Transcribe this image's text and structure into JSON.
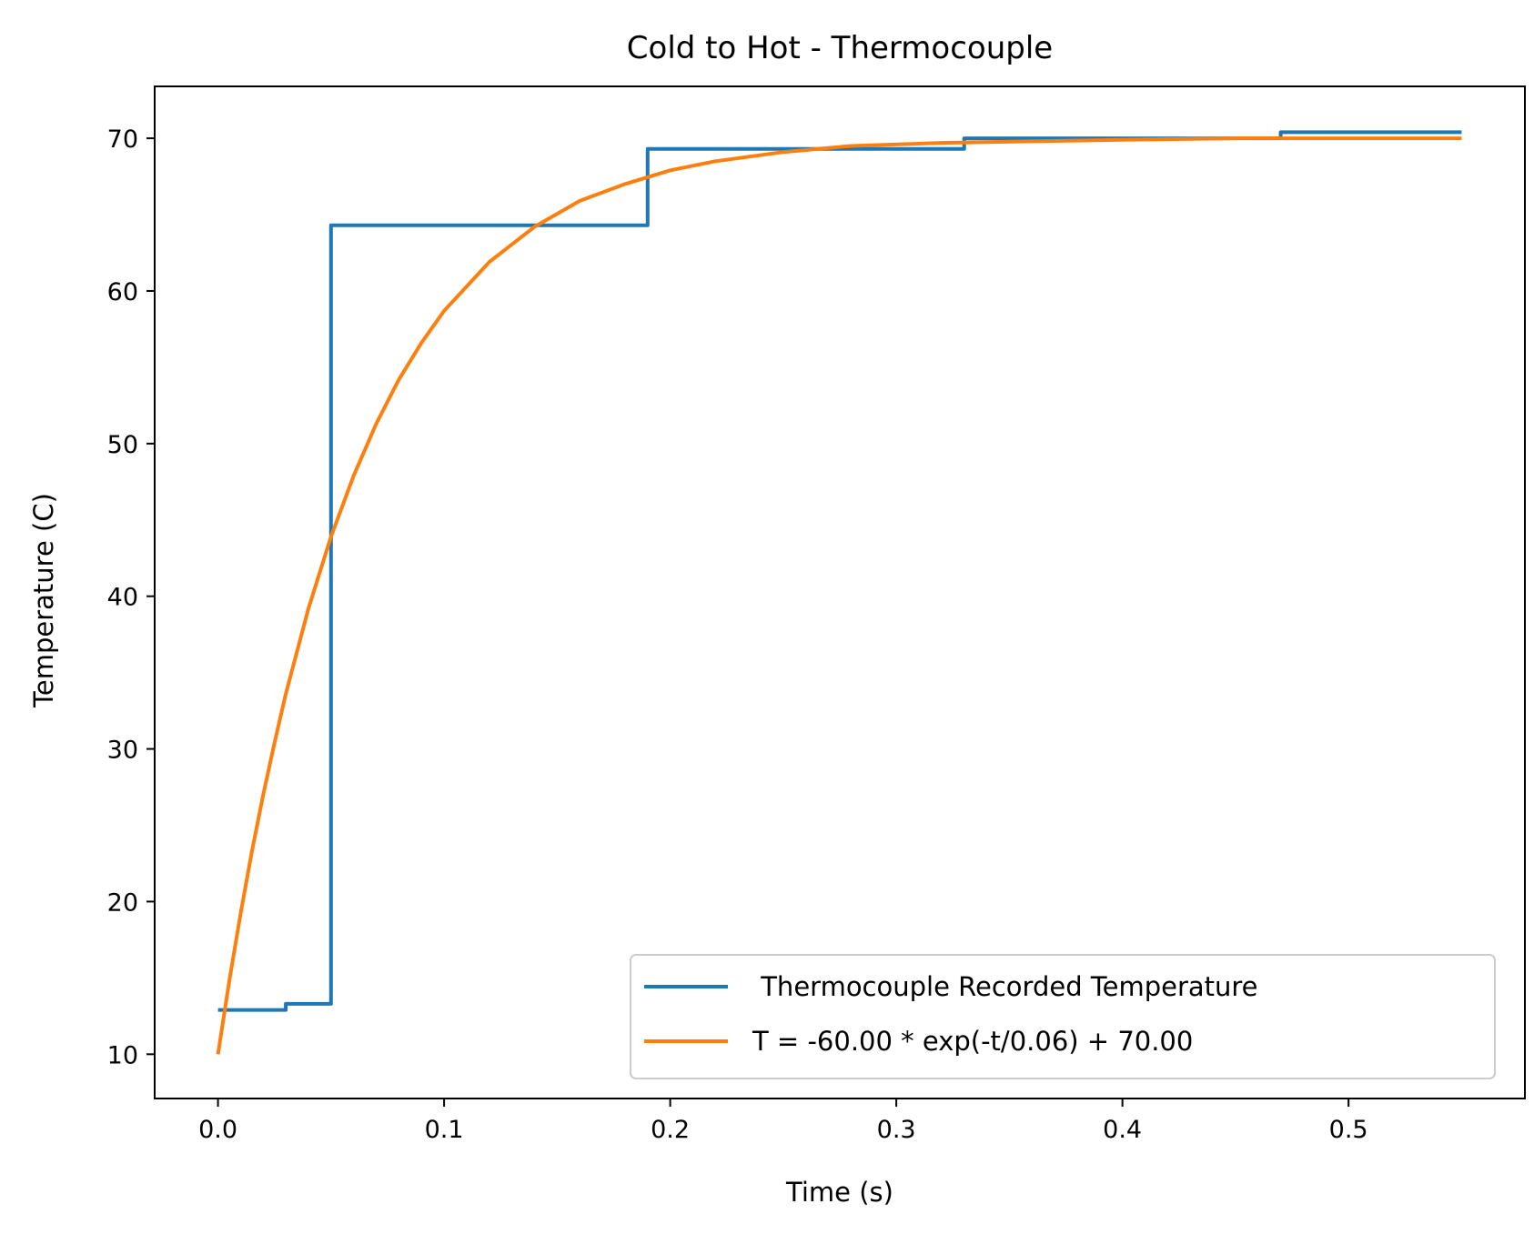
{
  "chart_data": {
    "type": "line",
    "title": "Cold to Hot - Thermocouple",
    "xlabel": "Time (s)",
    "ylabel": "Temperature (C)",
    "xlim": [
      -0.028,
      0.578
    ],
    "ylim": [
      7.1,
      73.4
    ],
    "x_ticks": [
      0.0,
      0.1,
      0.2,
      0.3,
      0.4,
      0.5
    ],
    "x_tick_labels": [
      "0.0",
      "0.1",
      "0.2",
      "0.3",
      "0.4",
      "0.5"
    ],
    "y_ticks": [
      10,
      20,
      30,
      40,
      50,
      60,
      70
    ],
    "y_tick_labels": [
      "10",
      "20",
      "30",
      "40",
      "50",
      "60",
      "70"
    ],
    "grid": false,
    "legend_position": "lower-right",
    "series": [
      {
        "name": " Thermocouple Recorded Temperature",
        "color": "#1f77b4",
        "style": "step",
        "x": [
          0.0,
          0.03,
          0.03,
          0.05,
          0.05,
          0.19,
          0.19,
          0.33,
          0.33,
          0.47,
          0.47,
          0.55
        ],
        "y": [
          12.9,
          12.9,
          13.3,
          13.3,
          64.3,
          64.3,
          69.3,
          69.3,
          70.0,
          70.0,
          70.4,
          70.4
        ]
      },
      {
        "name": "T = -60.00 * exp(-t/0.06) + 70.00",
        "color": "#ff7f0e",
        "style": "line",
        "x": [
          0.0,
          0.005,
          0.01,
          0.015,
          0.02,
          0.025,
          0.03,
          0.04,
          0.05,
          0.06,
          0.07,
          0.08,
          0.09,
          0.1,
          0.12,
          0.14,
          0.16,
          0.18,
          0.2,
          0.22,
          0.25,
          0.28,
          0.32,
          0.36,
          0.4,
          0.45,
          0.5,
          0.55
        ],
        "y": [
          10.0,
          14.8,
          19.2,
          23.3,
          27.0,
          30.4,
          33.6,
          39.2,
          43.9,
          47.9,
          51.3,
          54.2,
          56.6,
          58.7,
          61.9,
          64.2,
          65.9,
          67.0,
          67.9,
          68.5,
          69.1,
          69.5,
          69.7,
          69.8,
          69.9,
          70.0,
          70.0,
          70.0
        ]
      }
    ]
  }
}
